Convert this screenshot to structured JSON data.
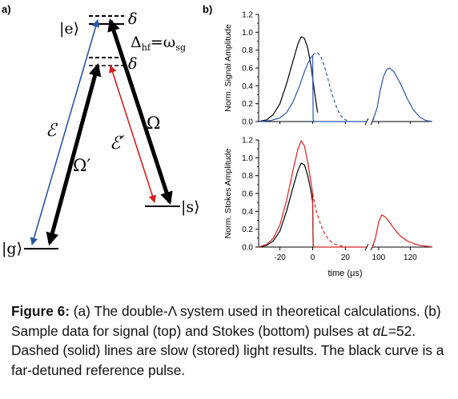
{
  "panel_a": {
    "label": "a)",
    "state_e": "|e⟩",
    "state_g": "|g⟩",
    "state_s": "|s⟩",
    "delta_top": "δ",
    "delta_mid": "δ",
    "hyperfine": "Δhf=ωsg",
    "field_E": "ℰ",
    "field_Omega_prime": "Ω′",
    "field_E_prime": "ℰ′",
    "field_Omega": "Ω",
    "colors": {
      "signal": "#2b56a6",
      "stokes": "#d42020",
      "black": "#000000"
    }
  },
  "panel_b": {
    "label": "b)",
    "xlabel": "time (μs)"
  },
  "chart_data": [
    {
      "type": "line",
      "title": "",
      "ylabel": "Norm. Signal Amplitude",
      "xlabel": "",
      "ylim": [
        0,
        1.2
      ],
      "yticks": [
        "0.0",
        "0.2",
        "0.4",
        "0.6",
        "0.8",
        "1.0",
        "1.2"
      ],
      "broken_x_axis": true,
      "xlim_left": [
        -33,
        33
      ],
      "xlim_right": [
        96,
        134
      ],
      "series": [
        {
          "color": "#000000",
          "style": "solid",
          "x": [
            -33,
            -28,
            -24,
            -20,
            -16,
            -12,
            -9,
            -7,
            -5,
            -3,
            -1,
            1,
            3
          ],
          "y": [
            0.0,
            0.02,
            0.08,
            0.2,
            0.42,
            0.68,
            0.87,
            0.95,
            0.93,
            0.82,
            0.62,
            0.35,
            0.1
          ]
        },
        {
          "color": "#2b56a6",
          "style": "solid",
          "x": [
            -33,
            -26,
            -20,
            -16,
            -12,
            -8,
            -5,
            -3,
            -1,
            0,
            0.3,
            1,
            5,
            10,
            20,
            33
          ],
          "y": [
            0.0,
            0.01,
            0.04,
            0.1,
            0.22,
            0.4,
            0.56,
            0.65,
            0.72,
            0.74,
            0.02,
            0.0,
            0.0,
            0.0,
            0.0,
            0.0
          ]
        },
        {
          "color": "#2b56a6",
          "style": "dashed",
          "x": [
            0,
            1,
            3,
            5,
            7,
            9,
            11,
            13,
            15,
            17,
            19,
            21
          ],
          "y": [
            0.74,
            0.76,
            0.77,
            0.73,
            0.63,
            0.5,
            0.36,
            0.24,
            0.14,
            0.07,
            0.03,
            0.01
          ]
        },
        {
          "color": "#2b56a6",
          "style": "solid",
          "x": [
            96,
            99,
            101,
            103,
            105,
            107,
            110,
            114,
            118,
            122,
            126,
            130,
            134
          ],
          "y": [
            0.0,
            0.15,
            0.35,
            0.5,
            0.58,
            0.6,
            0.55,
            0.42,
            0.26,
            0.13,
            0.05,
            0.01,
            0.0
          ]
        }
      ]
    },
    {
      "type": "line",
      "title": "",
      "ylabel": "Norm. Stokes Amplitude",
      "xlabel": "time (μs)",
      "ylim": [
        0,
        1.2
      ],
      "yticks": [
        "0.0",
        "0.2",
        "0.4",
        "0.6",
        "0.8",
        "1.0",
        "1.2"
      ],
      "broken_x_axis": true,
      "xlim_left": [
        -33,
        33
      ],
      "xlim_right": [
        96,
        134
      ],
      "xticks_left": [
        "-20",
        "0",
        "20"
      ],
      "xticks_right": [
        "100",
        "120"
      ],
      "xtick_values_left": [
        -20,
        0,
        20
      ],
      "xtick_values_right": [
        100,
        120
      ],
      "series": [
        {
          "color": "#000000",
          "style": "solid",
          "x": [
            -33,
            -28,
            -24,
            -20,
            -16,
            -12,
            -9,
            -7,
            -5,
            -3,
            -1,
            0,
            0.3
          ],
          "y": [
            0.0,
            0.02,
            0.07,
            0.18,
            0.4,
            0.67,
            0.86,
            0.94,
            0.92,
            0.8,
            0.62,
            0.5,
            0.01
          ]
        },
        {
          "color": "#d42020",
          "style": "solid",
          "x": [
            -33,
            -28,
            -24,
            -20,
            -16,
            -12,
            -9,
            -7,
            -5,
            -3,
            -1,
            0,
            0.3,
            1,
            10,
            33
          ],
          "y": [
            0.0,
            0.03,
            0.1,
            0.25,
            0.52,
            0.86,
            1.1,
            1.19,
            1.13,
            0.95,
            0.72,
            0.6,
            0.02,
            0.0,
            0.0,
            0.0
          ]
        },
        {
          "color": "#d42020",
          "style": "dashed",
          "x": [
            0,
            2,
            4,
            6,
            8,
            10,
            12,
            14,
            16,
            18,
            20
          ],
          "y": [
            0.6,
            0.42,
            0.3,
            0.2,
            0.13,
            0.08,
            0.05,
            0.03,
            0.02,
            0.01,
            0.0
          ]
        },
        {
          "color": "#d42020",
          "style": "solid",
          "x": [
            96,
            98,
            100,
            102,
            104,
            106,
            108,
            110,
            114,
            118,
            122,
            126,
            130,
            134
          ],
          "y": [
            0.0,
            0.1,
            0.28,
            0.36,
            0.34,
            0.3,
            0.25,
            0.2,
            0.12,
            0.07,
            0.04,
            0.02,
            0.01,
            0.0
          ]
        }
      ]
    }
  ],
  "caption": {
    "fig_label": "Figure 6:",
    "text_1": " (a) The double-Λ system used in theoretical calculations. (b) Sample data for signal (top) and Stokes (bottom) pulses at ",
    "alpha_L": "αL",
    "text_2": "=52. Dashed (solid) lines are slow (stored) light results. The black curve is a far-detuned reference pulse."
  }
}
